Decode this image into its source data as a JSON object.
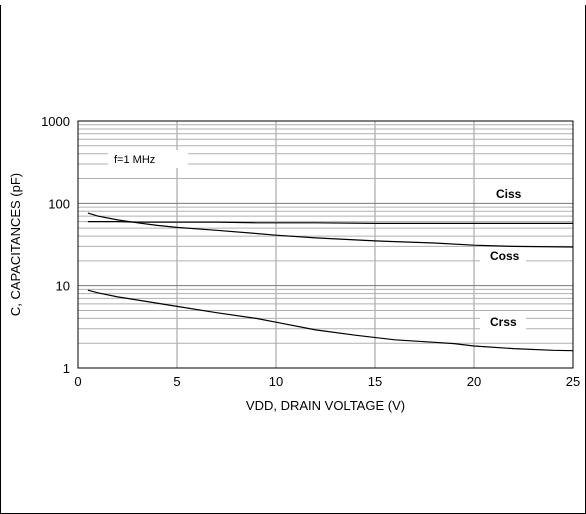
{
  "chart_data": {
    "type": "line",
    "xlabel": "VDD, DRAIN VOLTAGE (V)",
    "ylabel": "C, CAPACITANCES (pF)",
    "xlim": [
      0,
      25
    ],
    "ylim": [
      1,
      1000
    ],
    "y_scale": "log",
    "grid": true,
    "x_ticks": [
      "0",
      "5",
      "10",
      "15",
      "20",
      "25"
    ],
    "y_ticks": [
      "1",
      "10",
      "100",
      "1000"
    ],
    "annotation": "f=1 MHz",
    "series": [
      {
        "name": "Ciss",
        "x": [
          0.5,
          1,
          2,
          3,
          5,
          7,
          9,
          10,
          12,
          15,
          18,
          20,
          22,
          25
        ],
        "y": [
          60,
          60,
          60,
          59,
          59,
          59,
          58,
          58,
          58,
          57,
          57,
          57,
          57,
          57
        ]
      },
      {
        "name": "Coss",
        "x": [
          0.5,
          1,
          2,
          3,
          4,
          5,
          7,
          9,
          10,
          12,
          15,
          18,
          20,
          22,
          25
        ],
        "y": [
          76,
          70,
          63,
          58,
          54,
          51,
          47,
          43,
          41,
          38,
          35,
          33,
          31,
          30,
          29.5
        ]
      },
      {
        "name": "Crss",
        "x": [
          0.5,
          1,
          2,
          3,
          5,
          7,
          9,
          10,
          12,
          14,
          16,
          18,
          19,
          20,
          22,
          24,
          25
        ],
        "y": [
          8.8,
          8.2,
          7.3,
          6.7,
          5.6,
          4.7,
          4.0,
          3.6,
          2.9,
          2.5,
          2.2,
          2.05,
          1.98,
          1.85,
          1.72,
          1.64,
          1.62
        ]
      }
    ]
  }
}
